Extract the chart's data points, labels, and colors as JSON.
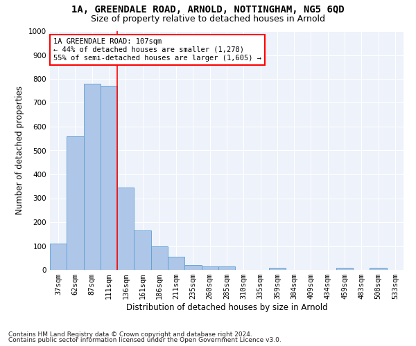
{
  "title": "1A, GREENDALE ROAD, ARNOLD, NOTTINGHAM, NG5 6QD",
  "subtitle": "Size of property relative to detached houses in Arnold",
  "xlabel": "Distribution of detached houses by size in Arnold",
  "ylabel": "Number of detached properties",
  "footnote1": "Contains HM Land Registry data © Crown copyright and database right 2024.",
  "footnote2": "Contains public sector information licensed under the Open Government Licence v3.0.",
  "categories": [
    "37sqm",
    "62sqm",
    "87sqm",
    "111sqm",
    "136sqm",
    "161sqm",
    "186sqm",
    "211sqm",
    "235sqm",
    "260sqm",
    "285sqm",
    "310sqm",
    "335sqm",
    "359sqm",
    "384sqm",
    "409sqm",
    "434sqm",
    "459sqm",
    "483sqm",
    "508sqm",
    "533sqm"
  ],
  "values": [
    110,
    560,
    780,
    770,
    345,
    165,
    98,
    55,
    20,
    15,
    15,
    0,
    0,
    10,
    0,
    0,
    0,
    8,
    0,
    8,
    0
  ],
  "bar_color": "#aec6e8",
  "bar_edge_color": "#5a9fd4",
  "annotation_line1": "1A GREENDALE ROAD: 107sqm",
  "annotation_line2": "← 44% of detached houses are smaller (1,278)",
  "annotation_line3": "55% of semi-detached houses are larger (1,605) →",
  "annotation_box_edge_color": "red",
  "marker_line_color": "red",
  "marker_line_index": 3.5,
  "ylim": [
    0,
    1000
  ],
  "yticks": [
    0,
    100,
    200,
    300,
    400,
    500,
    600,
    700,
    800,
    900,
    1000
  ],
  "background_color": "#eef2fa",
  "title_fontsize": 10,
  "subtitle_fontsize": 9,
  "axis_label_fontsize": 8.5,
  "tick_fontsize": 7.5,
  "annotation_fontsize": 7.5,
  "footnote_fontsize": 6.5
}
